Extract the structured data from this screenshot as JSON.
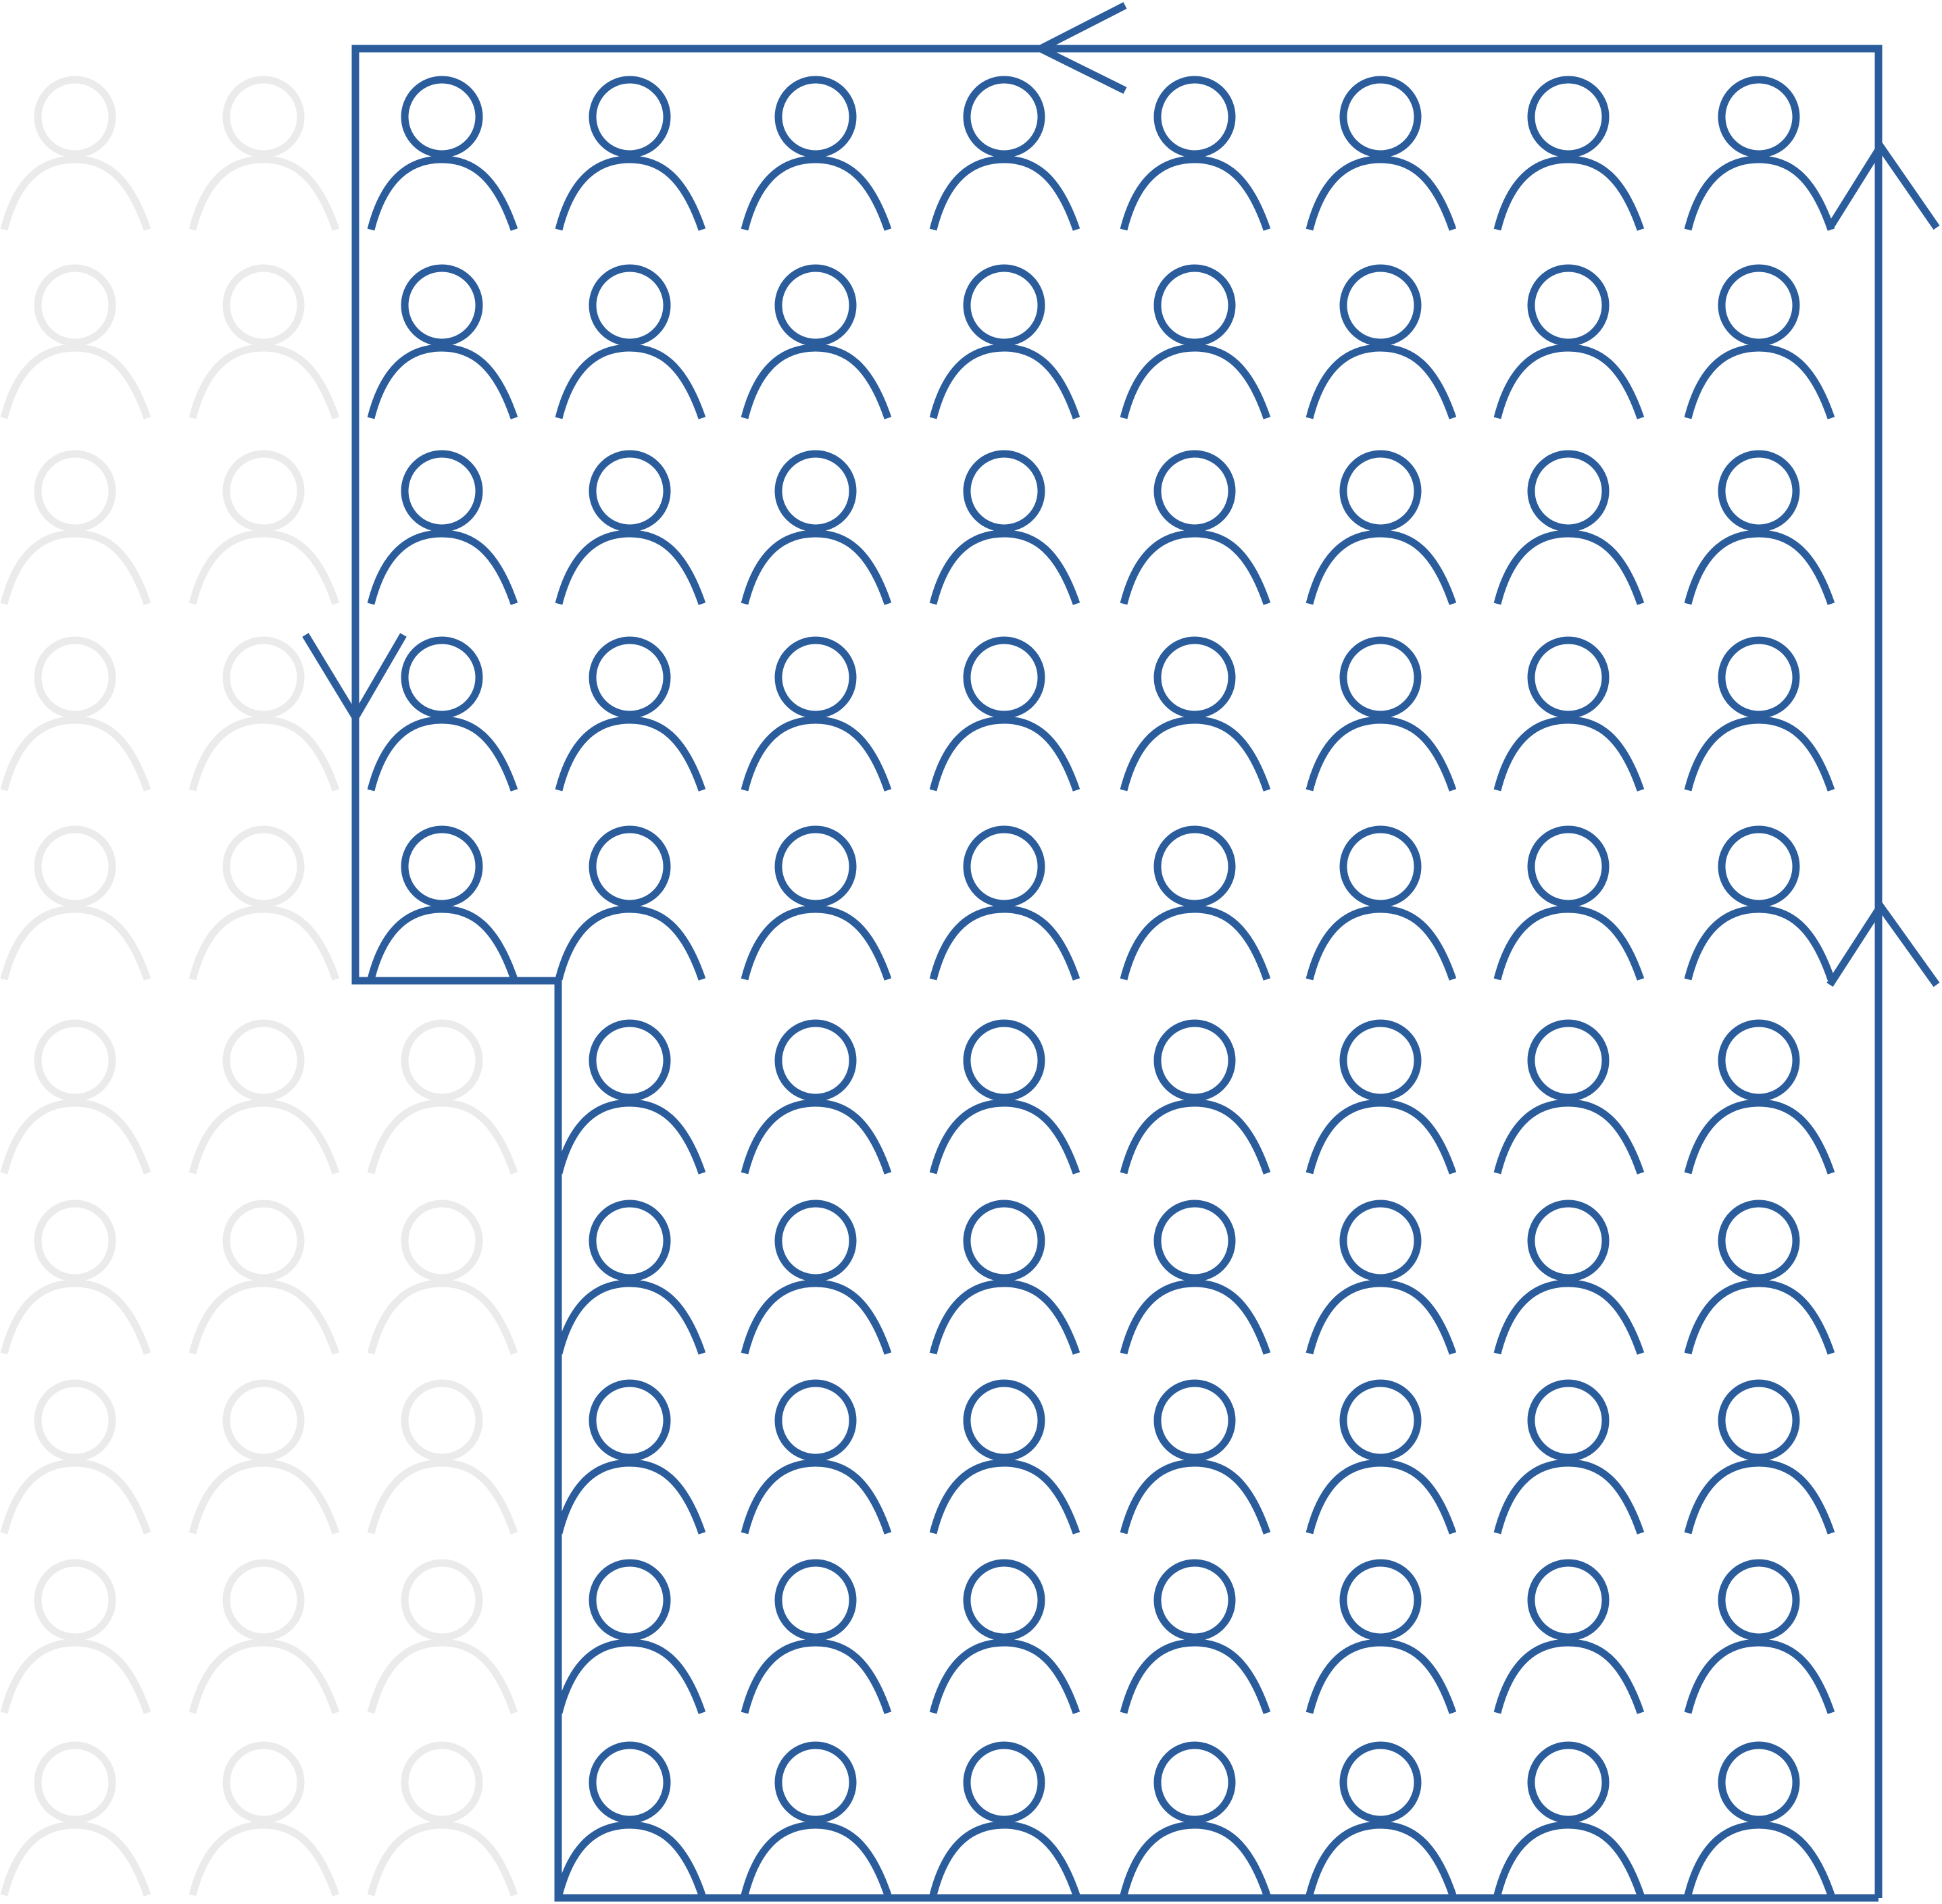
{
  "diagram": {
    "colors": {
      "highlight": "#2b5d9c",
      "muted": "#ebebeb",
      "background": "#ffffff"
    },
    "icon": "person-icon",
    "grid": {
      "rows": 10,
      "columns": 10,
      "total": 100,
      "highlighted": 75,
      "muted": 25,
      "rows_detail": [
        {
          "row": 1,
          "muted": 2,
          "highlighted": 8
        },
        {
          "row": 2,
          "muted": 2,
          "highlighted": 8
        },
        {
          "row": 3,
          "muted": 2,
          "highlighted": 8
        },
        {
          "row": 4,
          "muted": 2,
          "highlighted": 8
        },
        {
          "row": 5,
          "muted": 2,
          "highlighted": 8
        },
        {
          "row": 6,
          "muted": 3,
          "highlighted": 7
        },
        {
          "row": 7,
          "muted": 3,
          "highlighted": 7
        },
        {
          "row": 8,
          "muted": 3,
          "highlighted": 7
        },
        {
          "row": 9,
          "muted": 3,
          "highlighted": 7
        },
        {
          "row": 10,
          "muted": 3,
          "highlighted": 7
        }
      ]
    },
    "boundary": {
      "shape": "stepped-outline",
      "direction": "counter-clockwise",
      "arrows": [
        "top-edge-left",
        "right-edge-up-upper",
        "right-edge-up-lower",
        "left-edge-down"
      ]
    }
  }
}
